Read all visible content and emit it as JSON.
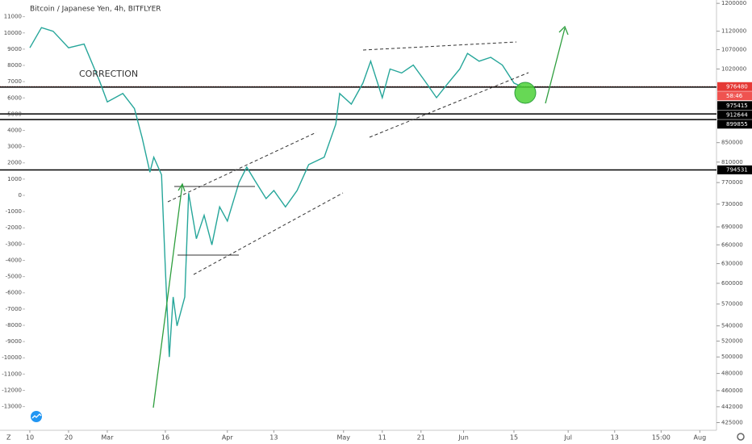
{
  "chart_data": {
    "type": "line",
    "title": "Bitcoin / Japanese Yen, 4h, BITFLYER",
    "annotation": "CORRECTION",
    "color": "#26a69a",
    "x": [
      0,
      3,
      6,
      10,
      14,
      18,
      20,
      24,
      27,
      29,
      31,
      32,
      34,
      35,
      36,
      37,
      38,
      40,
      41,
      43,
      45,
      47,
      49,
      51,
      54,
      56,
      58,
      61,
      63,
      66,
      69,
      72,
      76,
      79,
      80,
      83,
      86,
      88,
      91,
      93,
      96,
      99,
      102,
      105,
      108,
      111,
      113,
      116,
      119,
      122,
      125,
      127
    ],
    "values": [
      1075000,
      1130000,
      1120000,
      1075000,
      1085000,
      990000,
      940000,
      960000,
      925000,
      860000,
      790000,
      820000,
      785000,
      620000,
      500000,
      580000,
      540000,
      580000,
      750000,
      670000,
      710000,
      660000,
      725000,
      700000,
      770000,
      800000,
      775000,
      740000,
      755000,
      725000,
      755000,
      805000,
      820000,
      890000,
      960000,
      935000,
      985000,
      1040000,
      950000,
      1020000,
      1010000,
      1030000,
      990000,
      950000,
      985000,
      1020000,
      1060000,
      1040000,
      1050000,
      1030000,
      985000,
      976480
    ],
    "xlim": [
      -7.7,
      177.3
    ],
    "xticks": [
      {
        "value": 0,
        "label": "10"
      },
      {
        "value": 10,
        "label": "20"
      },
      {
        "value": 20,
        "label": "Mar"
      },
      {
        "value": 35,
        "label": "16"
      },
      {
        "value": 51,
        "label": "Apr"
      },
      {
        "value": 63,
        "label": "13"
      },
      {
        "value": 81,
        "label": "May"
      },
      {
        "value": 91,
        "label": "11"
      },
      {
        "value": 101,
        "label": "21"
      },
      {
        "value": 112,
        "label": "Jun"
      },
      {
        "value": 125,
        "label": "15"
      },
      {
        "value": 139,
        "label": "Jul"
      },
      {
        "value": 151,
        "label": "13"
      },
      {
        "value": 163,
        "label": "15:00"
      },
      {
        "value": 173,
        "label": "Aug"
      }
    ],
    "ylim": [
      417000,
      1210000
    ],
    "log_scale": true,
    "yticks": [
      1200000,
      1120000,
      1070000,
      1020000,
      850000,
      810000,
      770000,
      730000,
      690000,
      660000,
      630000,
      600000,
      570000,
      540000,
      520000,
      500000,
      480000,
      460000,
      442000,
      425000
    ],
    "y2lim": [
      -14460,
      12025
    ],
    "y2ticks": [
      11000,
      10000,
      9000,
      8000,
      7000,
      6000,
      5000,
      4000,
      3000,
      2000,
      1000,
      0,
      -1000,
      -2000,
      -3000,
      -4000,
      -5000,
      -6000,
      -7000,
      -8000,
      -9000,
      -10000,
      -11000,
      -12000,
      -13000
    ],
    "last_price": 976480,
    "countdown": "58:46",
    "levels": [
      975415,
      912644,
      899855,
      794531
    ]
  }
}
